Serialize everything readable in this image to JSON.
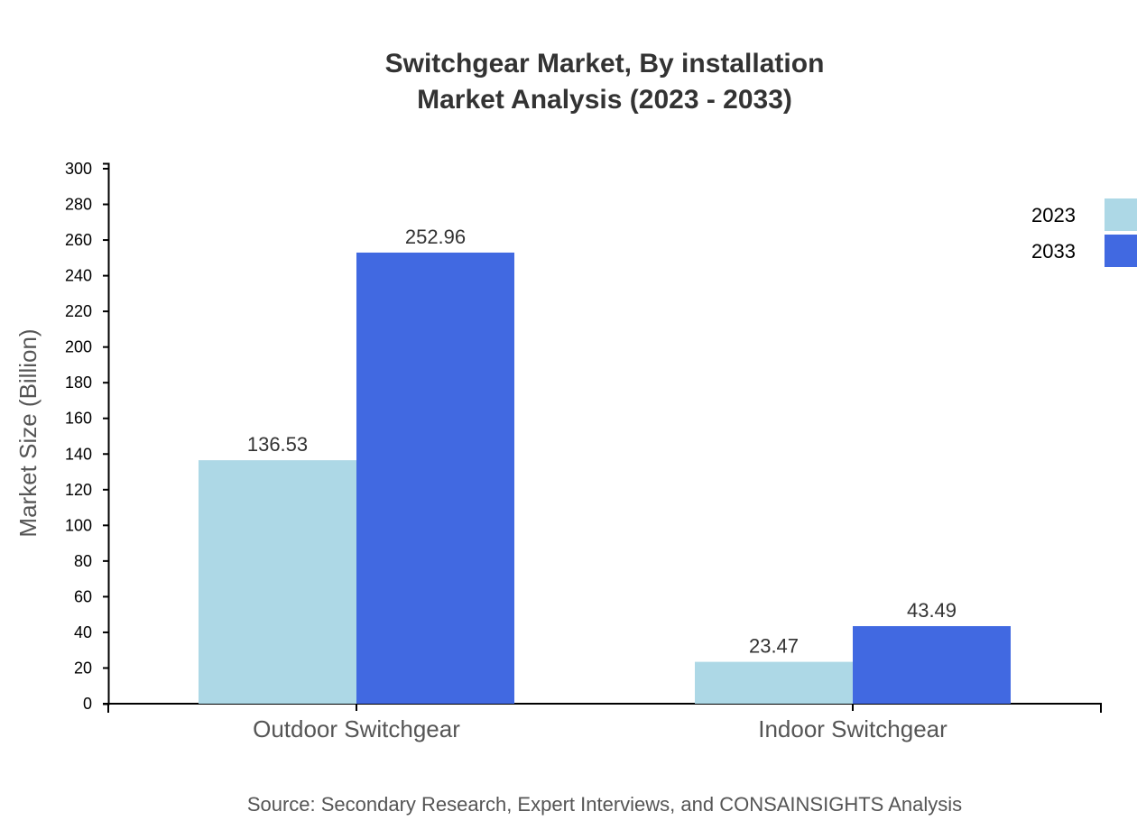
{
  "chart_data": {
    "type": "bar",
    "title": [
      "Switchgear Market, By installation",
      "Market Analysis (2023 - 2033)"
    ],
    "xlabel": "",
    "ylabel": "Market Size (Billion)",
    "ylim": [
      0,
      300
    ],
    "yticks": [
      0,
      20,
      40,
      60,
      80,
      100,
      120,
      140,
      160,
      180,
      200,
      220,
      240,
      260,
      280,
      300
    ],
    "categories": [
      "Outdoor Switchgear",
      "Indoor Switchgear"
    ],
    "series": [
      {
        "name": "2023",
        "color": "#add8e6",
        "values": [
          136.53,
          23.47
        ]
      },
      {
        "name": "2033",
        "color": "#4169e1",
        "values": [
          252.96,
          43.49
        ]
      }
    ],
    "data_labels": [
      [
        "136.53",
        "23.47"
      ],
      [
        "252.96",
        "43.49"
      ]
    ],
    "legend": "top-right",
    "grid": false,
    "source": "Source: Secondary Research, Expert Interviews, and CONSAINSIGHTS Analysis"
  }
}
